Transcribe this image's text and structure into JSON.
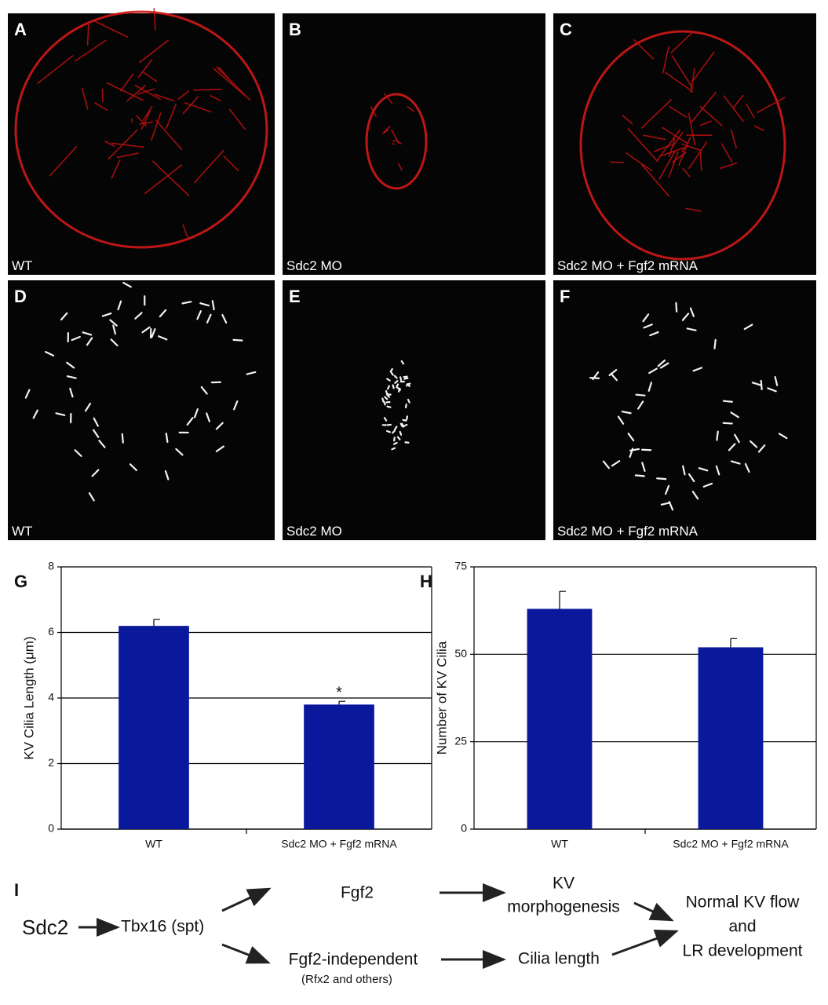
{
  "panels": [
    {
      "letter": "A",
      "caption": "WT"
    },
    {
      "letter": "B",
      "caption": "Sdc2 MO"
    },
    {
      "letter": "C",
      "caption": "Sdc2 MO + Fgf2 mRNA"
    },
    {
      "letter": "D",
      "caption": "WT"
    },
    {
      "letter": "E",
      "caption": "Sdc2 MO"
    },
    {
      "letter": "F",
      "caption": "Sdc2 MO + Fgf2 mRNA"
    }
  ],
  "chart_data": [
    {
      "type": "bar",
      "letter": "G",
      "y_label": "KV Cilia Length (μm)",
      "categories": [
        "WT",
        "Sdc2 MO + Fgf2 mRNA"
      ],
      "values": [
        6.2,
        3.8
      ],
      "errors": [
        0.2,
        0.1
      ],
      "annotations": [
        "",
        "*"
      ],
      "color": "#0a189c",
      "ylim": [
        0,
        8
      ],
      "yticks": [
        0,
        2,
        4,
        6,
        8
      ],
      "grid": true
    },
    {
      "type": "bar",
      "letter": "H",
      "y_label": "Number of KV Cilia",
      "categories": [
        "WT",
        "Sdc2 MO + Fgf2 mRNA"
      ],
      "values": [
        63,
        52
      ],
      "errors": [
        5,
        2.5
      ],
      "color": "#0a189c",
      "ylim": [
        0,
        75
      ],
      "yticks": [
        0,
        25,
        50,
        75
      ],
      "grid": true
    }
  ],
  "diagram": {
    "letter": "I",
    "nodes": [
      "Sdc2",
      "Tbx16 (spt)",
      "Fgf2",
      [
        "KV",
        "morphogenesis"
      ],
      [
        "Normal KV flow",
        "and",
        "LR development"
      ],
      "Fgf2-independent",
      "(Rfx2 and others)",
      "Cilia length"
    ]
  }
}
